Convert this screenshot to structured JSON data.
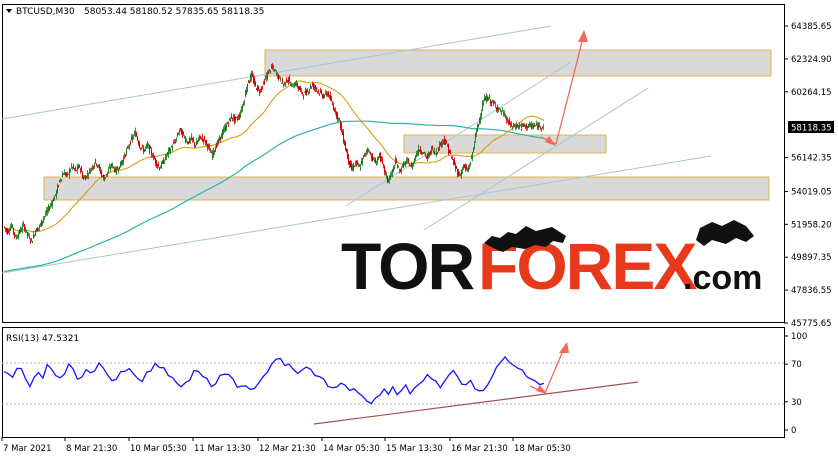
{
  "header": {
    "symbol": "BTCUSD,M30",
    "ohlc": "58053.44 58180.52 57835.65 58118.35"
  },
  "colors": {
    "up_candle": "#1f7a1f",
    "down_candle": "#cc0000",
    "ma_fast": "#d4a017",
    "ma_slow": "#2bb5a5",
    "trend_line": "#aac4d6",
    "zone_fill": "#d9d9d9",
    "zone_border": "#e6b450",
    "arrow": "#f06b5a",
    "rsi_line": "#1515ff",
    "rsi_support": "#a0524a",
    "price_tag": "#000000"
  },
  "chart_data": [
    {
      "type": "line",
      "title": "BTCUSD,M30",
      "description_label": "58053.44 58180.52 57835.65 58118.35",
      "xlabel": "",
      "ylabel": "",
      "x_tick_labels": [
        "7 Mar 2021",
        "8 Mar 21:30",
        "10 Mar 05:30",
        "11 Mar 13:30",
        "12 Mar 21:30",
        "14 Mar 05:30",
        "15 Mar 13:30",
        "16 Mar 21:30",
        "18 Mar 05:30"
      ],
      "y_tick_labels": [
        "64385.65",
        "62324.90",
        "60264.15",
        "58118.35",
        "56142.35",
        "54019.05",
        "51958.20",
        "49897.35",
        "47836.55",
        "45775.65"
      ],
      "ylim": [
        45775.65,
        64385.65
      ],
      "current_price": 58118.35,
      "series": [
        {
          "kind": "price_path",
          "x": [
            0,
            4,
            8,
            12,
            16,
            20,
            24,
            28,
            32,
            36,
            40,
            44,
            48,
            52,
            56,
            60,
            64,
            68,
            72,
            76,
            80,
            84,
            88,
            92,
            96,
            100,
            104,
            108,
            112,
            116,
            120,
            124,
            128,
            132,
            136,
            140,
            144,
            148,
            152,
            156,
            160,
            164,
            168,
            172,
            176,
            180,
            184,
            188,
            192,
            196,
            200,
            204,
            208,
            212,
            216,
            220,
            224,
            228,
            232,
            236,
            240,
            244,
            248,
            252,
            256,
            260,
            264,
            268,
            272,
            276,
            280,
            284,
            288,
            292,
            296,
            300,
            304,
            308,
            312,
            316,
            320,
            324,
            328,
            332,
            336,
            340,
            344,
            348,
            352,
            356,
            360,
            364,
            368,
            372,
            376,
            380,
            384,
            388,
            392,
            396,
            400,
            404,
            408,
            412,
            416,
            420,
            424,
            428,
            432,
            436,
            440,
            444,
            448,
            452,
            456,
            460,
            464,
            468,
            472,
            476,
            480,
            484,
            488,
            492,
            496,
            500,
            504,
            508,
            512,
            516,
            520,
            524,
            528,
            532,
            536,
            540
          ],
          "values": [
            51800,
            51500,
            51900,
            51100,
            51500,
            51900,
            51300,
            50900,
            51600,
            51800,
            52400,
            52800,
            53300,
            53800,
            54700,
            55200,
            55000,
            55600,
            55300,
            55600,
            54800,
            55100,
            55500,
            55900,
            55400,
            54800,
            55200,
            55700,
            55300,
            55600,
            56100,
            56700,
            57300,
            57700,
            56900,
            56600,
            56900,
            56400,
            55900,
            55500,
            55900,
            56400,
            56800,
            57200,
            57900,
            57500,
            57100,
            57300,
            56900,
            57400,
            57300,
            56900,
            56300,
            56800,
            57300,
            57800,
            58300,
            58700,
            58500,
            58800,
            59600,
            60800,
            61300,
            60600,
            60300,
            60800,
            61400,
            61800,
            61500,
            61100,
            60700,
            61100,
            60600,
            60800,
            60400,
            60100,
            60300,
            60700,
            60500,
            60200,
            60000,
            60200,
            59600,
            59000,
            58400,
            57300,
            56200,
            55400,
            55800,
            55500,
            56200,
            56700,
            56200,
            55800,
            56300,
            55500,
            54700,
            55100,
            55900,
            55300,
            55700,
            55900,
            55500,
            56300,
            56700,
            56400,
            56100,
            56700,
            56400,
            56900,
            57300,
            56800,
            56100,
            55500,
            55000,
            55600,
            55300,
            56100,
            57500,
            58600,
            59700,
            59900,
            59600,
            59400,
            59100,
            58900,
            58400,
            58118,
            58118,
            58118,
            58118,
            58118,
            58118,
            58118,
            58118,
            58118
          ]
        },
        {
          "kind": "moving_average_fast",
          "name": "",
          "values_note_hidden": true
        },
        {
          "kind": "moving_average_slow",
          "name": "",
          "values_note_hidden": true
        }
      ]
    },
    {
      "type": "line",
      "title": "RSI(13) 47.5321",
      "xlabel": "",
      "ylabel": "",
      "y_tick_labels": [
        "100",
        "70",
        "30",
        "0"
      ],
      "ylim": [
        0,
        100
      ],
      "current_value": 47.5321,
      "series": [
        {
          "name": "RSI(13)",
          "values": [
            62,
            58,
            55,
            66,
            63,
            52,
            48,
            58,
            60,
            55,
            68,
            65,
            60,
            56,
            59,
            72,
            66,
            54,
            58,
            62,
            60,
            63,
            70,
            66,
            58,
            54,
            55,
            60,
            62,
            65,
            58,
            55,
            50,
            60,
            65,
            72,
            68,
            64,
            58,
            56,
            50,
            44,
            48,
            55,
            62,
            64,
            58,
            54,
            46,
            50,
            56,
            60,
            58,
            52,
            47,
            45,
            48,
            44,
            46,
            52,
            58,
            64,
            72,
            76,
            74,
            68,
            72,
            66,
            58,
            62,
            68,
            64,
            60,
            56,
            52,
            48,
            44,
            46,
            50,
            46,
            42,
            44,
            40,
            36,
            30,
            26,
            32,
            38,
            42,
            40,
            44,
            38,
            42,
            46,
            40,
            44,
            48,
            52,
            58,
            54,
            50,
            46,
            54,
            58,
            62,
            56,
            50,
            48,
            52,
            46,
            44,
            42,
            48,
            56,
            66,
            74,
            76,
            72,
            70,
            68,
            64,
            58,
            54,
            50,
            48,
            47.5
          ]
        }
      ]
    }
  ]
}
